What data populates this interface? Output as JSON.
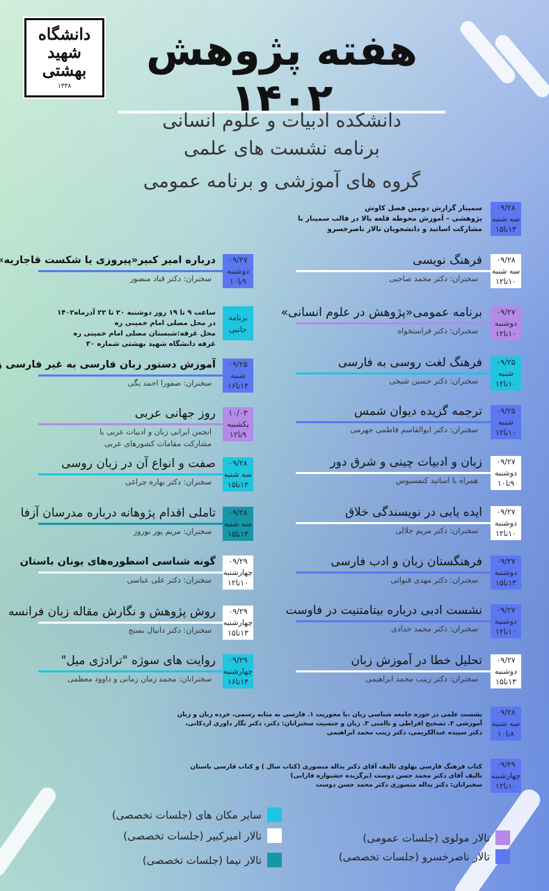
{
  "logo": {
    "line1": "دانشگاه",
    "line2": "شهید",
    "line3": "بهشتی",
    "year": "۱۳۳۸"
  },
  "title": "هفته پژوهش ۱۴۰۲",
  "subtitles": [
    "دانشکده ادبیات و علوم انسانی",
    "برنامه نشست های علمی",
    "گروه های آموزشی و برنامه عمومی"
  ],
  "colors": {
    "molavi": "#b58ae8",
    "naserkhosro": "#5b78f0",
    "amirkabir": "#ffffff",
    "other": "#1ec6df",
    "nima": "#1497a8"
  },
  "events": [
    {
      "venue": "naserkhosro",
      "date": "۰۹/۲۸",
      "day": "سه شنبه",
      "time": "۱۳تا۱۵",
      "paragraph": [
        "سمینار گزارش دومین فصل کاوش",
        "پژوهشی – آموزش محوطه قلعه بالا در قالب سمینار با",
        "مشارکت اساتید و دانشجویان تالار ناصرخسرو"
      ]
    },
    {
      "venue": "amirkabir",
      "date": "۰۹/۲۸",
      "day": "سه شنبه",
      "time": "۱۰تا۱۲",
      "title": "فرهنگ نویسی",
      "speaker": "سخنران: دکتر محمد صاحبی"
    },
    {
      "venue": "molavi",
      "date": "۰۹/۲۷",
      "day": "دوشنبه",
      "time": "۱۰تا۱۲",
      "title": "برنامه عمومی«پژوهش در علوم انسانی»",
      "speaker": "سخنران:  دکتر فراستخواه"
    },
    {
      "venue": "other",
      "date": "۰۹/۲۵",
      "day": "شنبه",
      "time": "۱۰تا۱۲",
      "title": "فرهنگ لغت روسی به فارسی",
      "speaker": "سخنران: دکتر حسین شیخی"
    },
    {
      "venue": "naserkhosro",
      "date": "۰۹/۲۵",
      "day": "شنبه",
      "time": "۱۰تا۱۲",
      "title": "ترجمه گزیده دیوان شمس",
      "speaker": "سخنران: دکتر ابوالقاسم فاطمی جهرمی"
    },
    {
      "venue": "amirkabir",
      "date": "۰۹/۲۷",
      "day": "دوشنبه",
      "time": "۹تا۱۰",
      "title": "زبان و ادبیات چینی و شرق دور",
      "speaker": "همراه با اساتید کنفسیوس"
    },
    {
      "venue": "amirkabir",
      "date": "۰۹/۲۷",
      "day": "دوشنبه",
      "time": "۱۰تا۱۲",
      "title": "ایده یابی در نویسندگی خلاق",
      "speaker": "سخنران: دکتر مریم جلالی"
    },
    {
      "venue": "naserkhosro",
      "date": "۰۹/۲۷",
      "day": "دوشنبه",
      "time": "۱۳تا۱۵",
      "title": "فرهنگستان زبان و ادب فارسی",
      "speaker": "سخنران: دکتر مهدی قنواتی"
    },
    {
      "venue": "naserkhosro",
      "date": "۰۹/۲۷",
      "day": "دوشنبه",
      "time": "۱۰تا۱۲",
      "title": "نشست ادبی درباره بیتامتنیت در فاوست",
      "speaker": "سخنران: دکتر محمد حدادی"
    },
    {
      "venue": "amirkabir",
      "date": "۰۹/۲۷",
      "day": "دوشنبه",
      "time": "۱۳تا۱۵",
      "title": "تحلیل خطا در آموزش زبان",
      "speaker": "سخنران: دکتر زینب محمد ابراهیمی"
    },
    {
      "venue": "naserkhosro",
      "date": "۰۹/۲۸",
      "day": "سه شنبه",
      "time": "۸تا۱۰",
      "paragraph": [
        "نشست علمی در حوزه جامعه شناسی زبان ،با محوریت ۱. فارسی به مثابه رسمی، خرده زبان و زبان",
        "آموزشی ۲. تصحیح افراطی و ناامنی ۳. زبان و جنسیت سخنرانان: دکتر، دکتر نگار داوری اردکانی،",
        "دکتر سپیده عبدالکریمی، دکتر زینب محمد ابراهیمی"
      ]
    },
    {
      "venue": "naserkhosro",
      "date": "۰۹/۲۹",
      "day": "چهارشنبه",
      "time": "۱۰تا۱۲",
      "paragraph": [
        "کتاب فرهنگ فارسی پهلوی تالیف آقای دکتر یداله منصوری (کتاب سال ) و کتاب فارسی باستان",
        "تالیف آقای دکتر محمد حسن دوست (برگزیده جشنواره فارابی)",
        "سخنرانان: دکتر یداله منصوری دکتر محمد حسن دوست"
      ]
    },
    {
      "venue": "naserkhosro",
      "date": "۰۹/۲۷",
      "day": "دوشنبه",
      "time": "۹تا۱۰",
      "title": "درباره امیر کبیر«پیروزی یا شکست قاجاریه»",
      "bold": true,
      "speaker": "سخنران: دکتر قباد منصور"
    },
    {
      "venue": "other",
      "label": [
        "برنامه",
        "جانبی"
      ],
      "paragraph": [
        "ساعت ۹ تا ۱۹ روز دوشنبه ۲۰ تا ۲۲ آذرماه۱۴۰۲",
        "در محل مصلی امام خمینی ره",
        "محل غرفه:شبستان مصلی امام خمینی ره",
        "غرفه دانشگاه شهید بهشتی شماره ۳۰"
      ]
    },
    {
      "venue": "naserkhosro",
      "date": "۰۹/۲۵",
      "day": "شنبه",
      "time": "۱۴تا۱۶",
      "title": "آموزش دستور زبان فارسی به غیر فارسی زبانان",
      "bold": true,
      "speaker": "سخنران: صفورا احمد بگی"
    },
    {
      "venue": "molavi",
      "date": "۱۰/۰۳",
      "day": "یکشنبه",
      "time": "۹تا۱۲",
      "title": "روز جهانی عربی",
      "speaker": "انجمن ایرانی زبان و ادبیات عربی با",
      "speaker2": "مشارکت مقامات کشورهای عربی"
    },
    {
      "venue": "other",
      "date": "۰۹/۲۸",
      "day": "سه شنبه",
      "time": "۱۳تا۱۵",
      "title": "صفت و انواع آن در زبان روسی",
      "speaker": "سخنران: دکتر بهاره چراغی"
    },
    {
      "venue": "nima",
      "date": "۰۹/۲۸",
      "day": "سه شنبه",
      "time": "۱۳تا۱۵",
      "title": "تاملی اقدام پژوهانه درباره مدرسان آزفا",
      "speaker": "سخنران: مریم پور نوروز"
    },
    {
      "venue": "amirkabir",
      "date": "۰۹/۲۹",
      "day": "چهارشنبه",
      "time": "۱۰تا۱۲",
      "title": "گونه شناسی اسطوره‌های  یونان   باستان",
      "bold": true,
      "speaker": "سخنران: دکتر علی عباسی"
    },
    {
      "venue": "amirkabir",
      "date": "۰۹/۲۹",
      "day": "چهارشنبه",
      "time": "۱۳تا۱۵",
      "title": "روش پژوهش و نگارش مقاله زبان فرانسه",
      "speaker": "سخنران: دکتر دانیال بسنج"
    },
    {
      "venue": "other",
      "date": "۰۹/۲۹",
      "day": "چهارشنبه",
      "time": "۱۴تا۱۶",
      "title": "روایت های سوژه \"ترادژی میل\"",
      "speaker": "سخنرانان: محمد زمان زمانی و داوود معظمی"
    }
  ],
  "legend": [
    {
      "venue": "other",
      "label": "سایر مکان های (جلسات تخصصی)"
    },
    {
      "venue": "amirkabir",
      "label": "تالار امیرکبیر (جلسات تخصصی)"
    },
    {
      "venue": "nima",
      "label": "تالار نیما (جلسات تخصصی)"
    },
    {
      "venue": "molavi",
      "label": "تالار مولوی (جلسات عمومی)"
    },
    {
      "venue": "naserkhosro",
      "label": "تالار ناصرخسرو (جلسات تخصصی)"
    }
  ]
}
